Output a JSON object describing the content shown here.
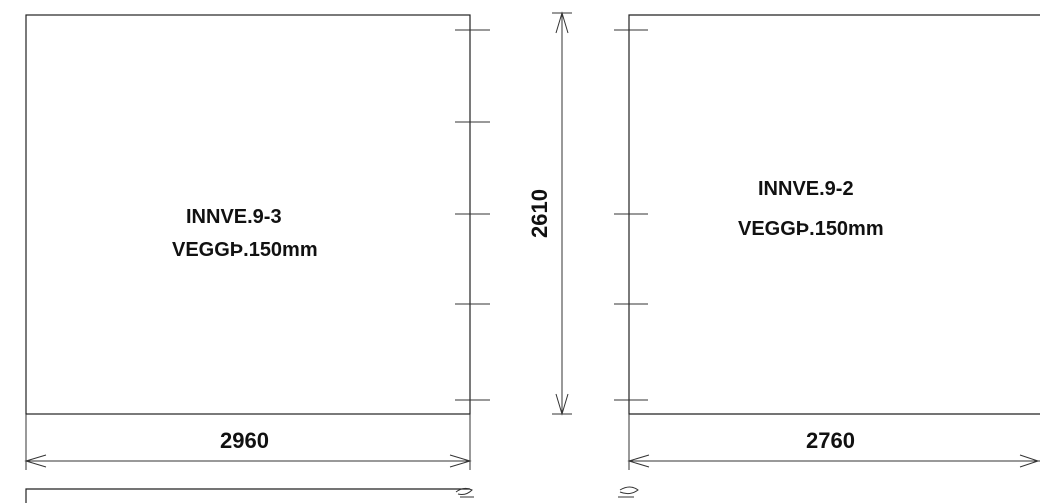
{
  "panels": [
    {
      "id": "left",
      "name": "INNVE.9-3",
      "spec": "VEGGÞ.150mm",
      "width_dim": "2960"
    },
    {
      "id": "right",
      "name": "INNVE.9-2",
      "spec": "VEGGÞ.150mm",
      "width_dim": "2760"
    }
  ],
  "height_dim": "2610"
}
